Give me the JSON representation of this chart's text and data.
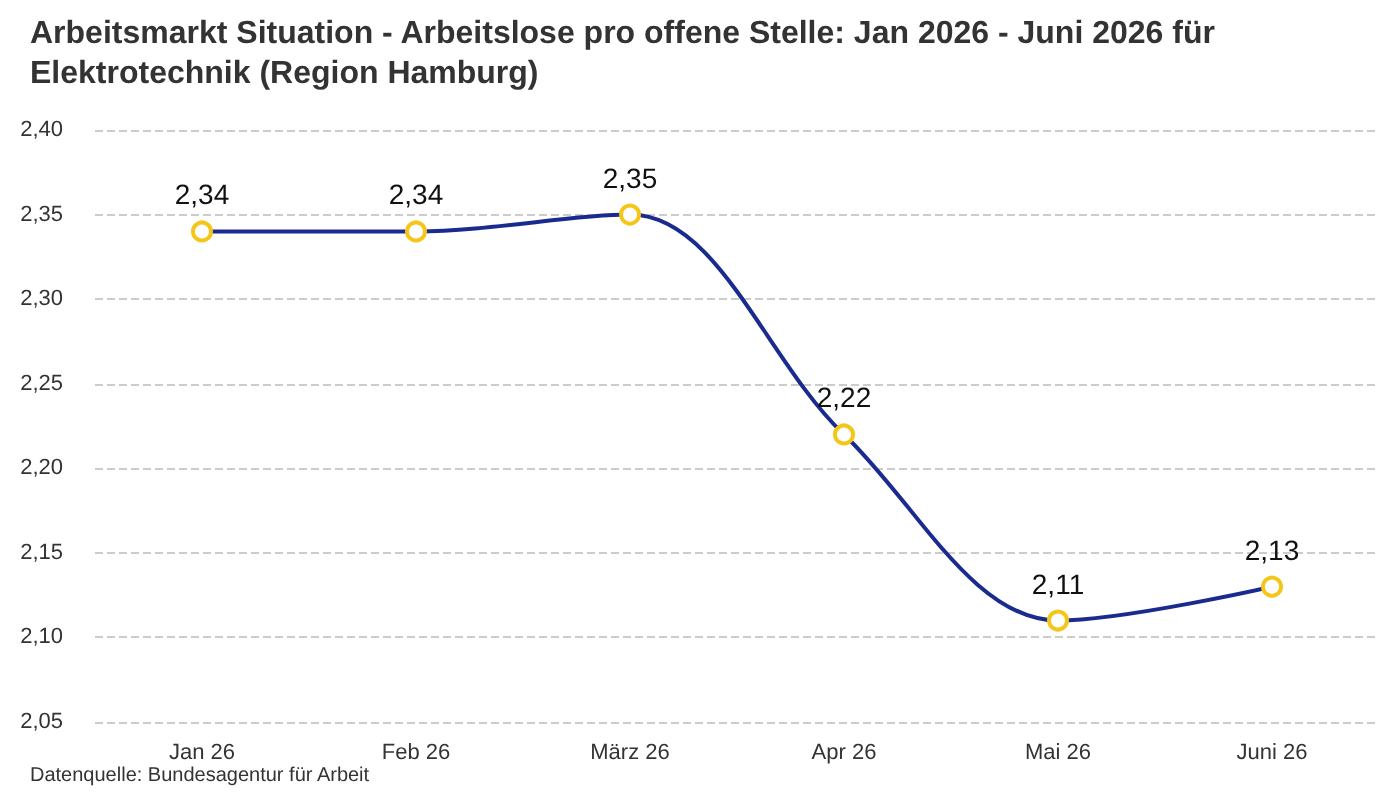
{
  "chart_data": {
    "type": "line",
    "title": "Arbeitsmarkt Situation - Arbeitslose pro offene Stelle: Jan 2026 - Juni 2026 für Elektrotechnik (Region Hamburg)",
    "annotations": [
      "Datenquelle: Bundesagentur für Arbeit"
    ],
    "categories": [
      "Jan 26",
      "Feb 26",
      "März 26",
      "Apr 26",
      "Mai 26",
      "Juni 26"
    ],
    "series": [
      {
        "color": "#1a2b8f",
        "values": [
          2.34,
          2.34,
          2.35,
          2.22,
          2.11,
          2.13
        ],
        "value_labels": [
          "2,34",
          "2,34",
          "2,35",
          "2,22",
          "2,11",
          "2,13"
        ]
      }
    ],
    "ylim": [
      2.05,
      2.4
    ],
    "yticks": [
      {
        "value": 2.05,
        "label": "2,05"
      },
      {
        "value": 2.1,
        "label": "2,10"
      },
      {
        "value": 2.15,
        "label": "2,15"
      },
      {
        "value": 2.2,
        "label": "2,20"
      },
      {
        "value": 2.25,
        "label": "2,25"
      },
      {
        "value": 2.3,
        "label": "2,30"
      },
      {
        "value": 2.35,
        "label": "2,35"
      },
      {
        "value": 2.4,
        "label": "2,40"
      }
    ],
    "grid": "y",
    "marker": "circle",
    "line_style": "solid"
  }
}
